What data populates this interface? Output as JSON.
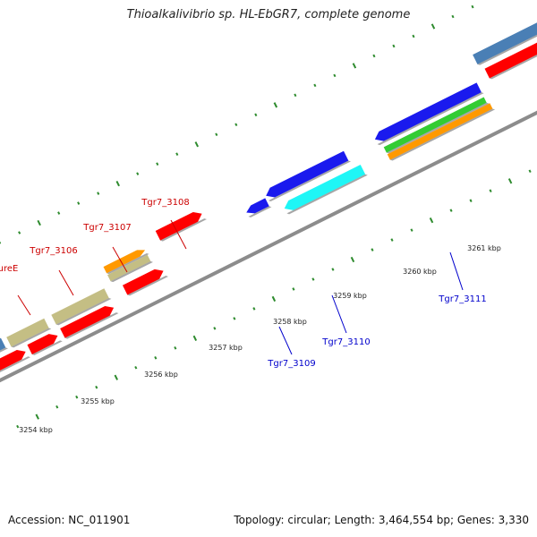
{
  "title": "Thioalkalivibrio sp. HL-EbGR7, complete genome",
  "accession": "Accession: NC_011901",
  "topology": "Topology: circular; Length: 3,464,554 bp; Genes: 3,330",
  "colors": {
    "backbone": "#8c8c8c",
    "tick": "#2e8b2e",
    "forward_label": "#cc0000",
    "reverse_label": "#0000cc",
    "red": "#ff0000",
    "khaki": "#c4be84",
    "orange": "#ff9900",
    "steelblue": "#4a7fb5",
    "blue": "#1a1aee",
    "cyan": "#1ef6f6",
    "green": "#33cc33"
  },
  "scale_labels": [
    "3254 kbp",
    "3255 kbp",
    "3256 kbp",
    "3257 kbp",
    "3258 kbp",
    "3259 kbp",
    "3260 kbp",
    "3261 kbp"
  ],
  "gene_labels": {
    "forward": [
      "ureE",
      "Tgr7_3106",
      "Tgr7_3107",
      "Tgr7_3108"
    ],
    "reverse": [
      "Tgr7_3109",
      "Tgr7_3110",
      "Tgr7_3111"
    ]
  }
}
